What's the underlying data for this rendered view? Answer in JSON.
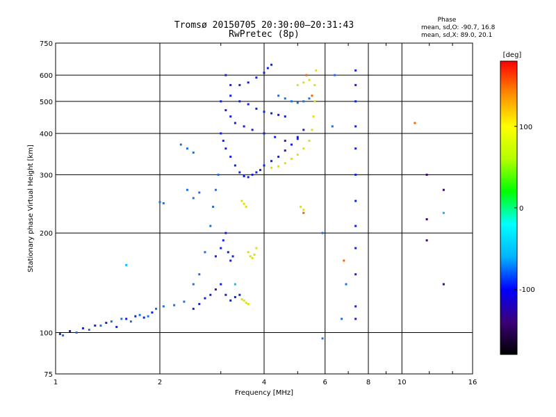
{
  "chart_data": {
    "type": "scatter",
    "title_line1": "Tromsø 20150705 20:30:00–20:31:43",
    "title_line2": "RwPretec (8p)",
    "phase_header": "Phase",
    "phase_stats_O": "mean, sd,O: -90.7, 16.8",
    "phase_stats_X": "mean, sd,X:  89.0, 20.1",
    "xlabel": "Frequency [MHz]",
    "ylabel": "Stationary phase Virtual Height [km]",
    "x_scale": "log",
    "y_scale": "log",
    "xlim": [
      1,
      16
    ],
    "ylim": [
      75,
      750
    ],
    "x_ticks": [
      1,
      2,
      4,
      6,
      8,
      10,
      16
    ],
    "x_tick_labels": [
      "1",
      "2",
      "4",
      "6",
      "8",
      "10",
      "16"
    ],
    "y_ticks": [
      75,
      100,
      200,
      300,
      400,
      500,
      600,
      750
    ],
    "y_tick_labels": [
      "75",
      "100",
      "200",
      "300",
      "400",
      "500",
      "600",
      "750"
    ],
    "grid": true,
    "colorbar": {
      "label": "[deg]",
      "range": [
        -180,
        180
      ],
      "ticks": [
        100,
        0,
        -100
      ],
      "tick_labels": [
        "100",
        "0",
        "-100"
      ],
      "colors": [
        "#000000",
        "#3c0078",
        "#0000ff",
        "#00b4ff",
        "#00ffff",
        "#00ff00",
        "#b4ff00",
        "#ffff00",
        "#ff8c00",
        "#ff0000"
      ]
    },
    "series": [
      {
        "color": "#1020e0",
        "points": [
          [
            1.03,
            99
          ],
          [
            1.1,
            101
          ],
          [
            1.2,
            103
          ],
          [
            1.3,
            105
          ],
          [
            1.4,
            107
          ],
          [
            1.5,
            104
          ],
          [
            1.6,
            110
          ],
          [
            1.7,
            112
          ],
          [
            1.8,
            111
          ],
          [
            1.9,
            115
          ]
        ]
      },
      {
        "color": "#1a6ee8",
        "points": [
          [
            1.05,
            98
          ],
          [
            1.15,
            100
          ],
          [
            1.25,
            102
          ],
          [
            1.35,
            105
          ],
          [
            1.45,
            108
          ],
          [
            1.55,
            110
          ],
          [
            1.65,
            108
          ],
          [
            1.75,
            113
          ],
          [
            1.85,
            112
          ],
          [
            1.95,
            118
          ],
          [
            2.05,
            120
          ],
          [
            2.2,
            121
          ],
          [
            2.35,
            124
          ]
        ]
      },
      {
        "color": "#1020e0",
        "points": [
          [
            2.5,
            118
          ],
          [
            2.6,
            122
          ],
          [
            2.7,
            127
          ],
          [
            2.8,
            130
          ],
          [
            2.9,
            135
          ],
          [
            3.0,
            140
          ],
          [
            3.1,
            130
          ],
          [
            3.2,
            125
          ],
          [
            3.3,
            128
          ],
          [
            3.4,
            130
          ]
        ]
      },
      {
        "color": "#1a6ee8",
        "points": [
          [
            2.5,
            140
          ],
          [
            2.6,
            150
          ],
          [
            2.7,
            175
          ],
          [
            2.8,
            210
          ],
          [
            2.85,
            240
          ],
          [
            2.9,
            270
          ],
          [
            2.95,
            300
          ]
        ]
      },
      {
        "color": "#1020e0",
        "points": [
          [
            2.9,
            170
          ],
          [
            3.0,
            180
          ],
          [
            3.05,
            190
          ],
          [
            3.1,
            200
          ],
          [
            3.15,
            175
          ],
          [
            3.2,
            165
          ],
          [
            3.25,
            170
          ]
        ]
      },
      {
        "color": "#1a6ee8",
        "points": [
          [
            2.0,
            248
          ],
          [
            2.05,
            246
          ],
          [
            2.4,
            270
          ],
          [
            2.5,
            255
          ],
          [
            2.6,
            265
          ]
        ]
      },
      {
        "color": "#1a6ee8",
        "points": [
          [
            2.3,
            370
          ],
          [
            2.4,
            360
          ],
          [
            2.5,
            350
          ]
        ]
      },
      {
        "color": "#1020e0",
        "points": [
          [
            3.0,
            400
          ],
          [
            3.05,
            380
          ],
          [
            3.1,
            360
          ],
          [
            3.2,
            340
          ],
          [
            3.3,
            320
          ],
          [
            3.4,
            305
          ],
          [
            3.5,
            297
          ],
          [
            3.6,
            295
          ],
          [
            3.7,
            300
          ],
          [
            3.8,
            305
          ],
          [
            3.9,
            310
          ],
          [
            4.0,
            320
          ],
          [
            4.2,
            330
          ],
          [
            4.4,
            340
          ],
          [
            4.6,
            355
          ],
          [
            4.8,
            370
          ],
          [
            5.0,
            390
          ],
          [
            5.2,
            410
          ]
        ]
      },
      {
        "color": "#1020e0",
        "points": [
          [
            3.0,
            500
          ],
          [
            3.1,
            470
          ],
          [
            3.2,
            450
          ],
          [
            3.3,
            430
          ],
          [
            3.5,
            420
          ],
          [
            3.7,
            410
          ],
          [
            4.0,
            400
          ],
          [
            4.3,
            390
          ],
          [
            4.6,
            380
          ],
          [
            5.0,
            385
          ]
        ]
      },
      {
        "color": "#1020e0",
        "points": [
          [
            3.1,
            600
          ],
          [
            3.2,
            560
          ],
          [
            3.4,
            560
          ],
          [
            3.6,
            570
          ],
          [
            3.8,
            590
          ],
          [
            4.0,
            610
          ],
          [
            4.1,
            630
          ],
          [
            4.2,
            645
          ]
        ]
      },
      {
        "color": "#1020e0",
        "points": [
          [
            3.2,
            520
          ],
          [
            3.4,
            500
          ],
          [
            3.6,
            490
          ],
          [
            3.8,
            475
          ],
          [
            4.0,
            465
          ],
          [
            4.2,
            460
          ],
          [
            4.4,
            455
          ],
          [
            4.6,
            450
          ]
        ]
      },
      {
        "color": "#1a6ee8",
        "points": [
          [
            4.4,
            520
          ],
          [
            4.6,
            510
          ],
          [
            4.8,
            500
          ],
          [
            5.0,
            495
          ],
          [
            5.2,
            500
          ],
          [
            5.4,
            510
          ]
        ]
      },
      {
        "color": "#e0e010",
        "points": [
          [
            4.2,
            315
          ],
          [
            4.4,
            318
          ],
          [
            4.6,
            325
          ],
          [
            4.8,
            335
          ],
          [
            5.0,
            345
          ],
          [
            5.2,
            360
          ],
          [
            5.4,
            380
          ],
          [
            5.5,
            410
          ],
          [
            5.55,
            450
          ],
          [
            5.6,
            500
          ],
          [
            5.6,
            560
          ],
          [
            5.65,
            620
          ]
        ]
      },
      {
        "color": "#e0e010",
        "points": [
          [
            3.6,
            175
          ],
          [
            3.65,
            170
          ],
          [
            3.7,
            168
          ],
          [
            3.75,
            172
          ],
          [
            3.8,
            180
          ],
          [
            3.5,
            125
          ],
          [
            3.55,
            123
          ],
          [
            3.6,
            122
          ],
          [
            3.45,
            126
          ]
        ]
      },
      {
        "color": "#e0e010",
        "points": [
          [
            3.45,
            250
          ],
          [
            3.5,
            245
          ],
          [
            3.55,
            240
          ],
          [
            5.1,
            240
          ],
          [
            5.2,
            235
          ]
        ]
      },
      {
        "color": "#e0e010",
        "points": [
          [
            5.0,
            560
          ],
          [
            5.2,
            570
          ],
          [
            5.4,
            580
          ]
        ]
      },
      {
        "color": "#ff6000",
        "points": [
          [
            5.3,
            600
          ],
          [
            5.5,
            520
          ],
          [
            6.8,
            165
          ],
          [
            10.9,
            430
          ],
          [
            5.2,
            230
          ]
        ]
      },
      {
        "color": "#1020e0",
        "points": [
          [
            7.35,
            620
          ],
          [
            7.35,
            560
          ],
          [
            7.35,
            500
          ],
          [
            7.35,
            420
          ],
          [
            7.35,
            360
          ],
          [
            7.35,
            300
          ],
          [
            7.35,
            250
          ],
          [
            7.35,
            210
          ],
          [
            7.35,
            180
          ],
          [
            7.35,
            150
          ],
          [
            7.35,
            120
          ],
          [
            7.35,
            110
          ]
        ]
      },
      {
        "color": "#1a6ee8",
        "points": [
          [
            6.4,
            600
          ],
          [
            6.3,
            420
          ],
          [
            6.7,
            110
          ],
          [
            6.9,
            140
          ],
          [
            5.9,
            200
          ],
          [
            5.9,
            96
          ]
        ]
      },
      {
        "color": "#3c0078",
        "points": [
          [
            11.8,
            300
          ],
          [
            11.8,
            220
          ],
          [
            11.8,
            190
          ],
          [
            13.2,
            270
          ],
          [
            13.2,
            140
          ]
        ]
      },
      {
        "color": "#00c0ff",
        "points": [
          [
            13.2,
            230
          ],
          [
            1.6,
            160
          ],
          [
            3.3,
            140
          ]
        ]
      }
    ]
  }
}
